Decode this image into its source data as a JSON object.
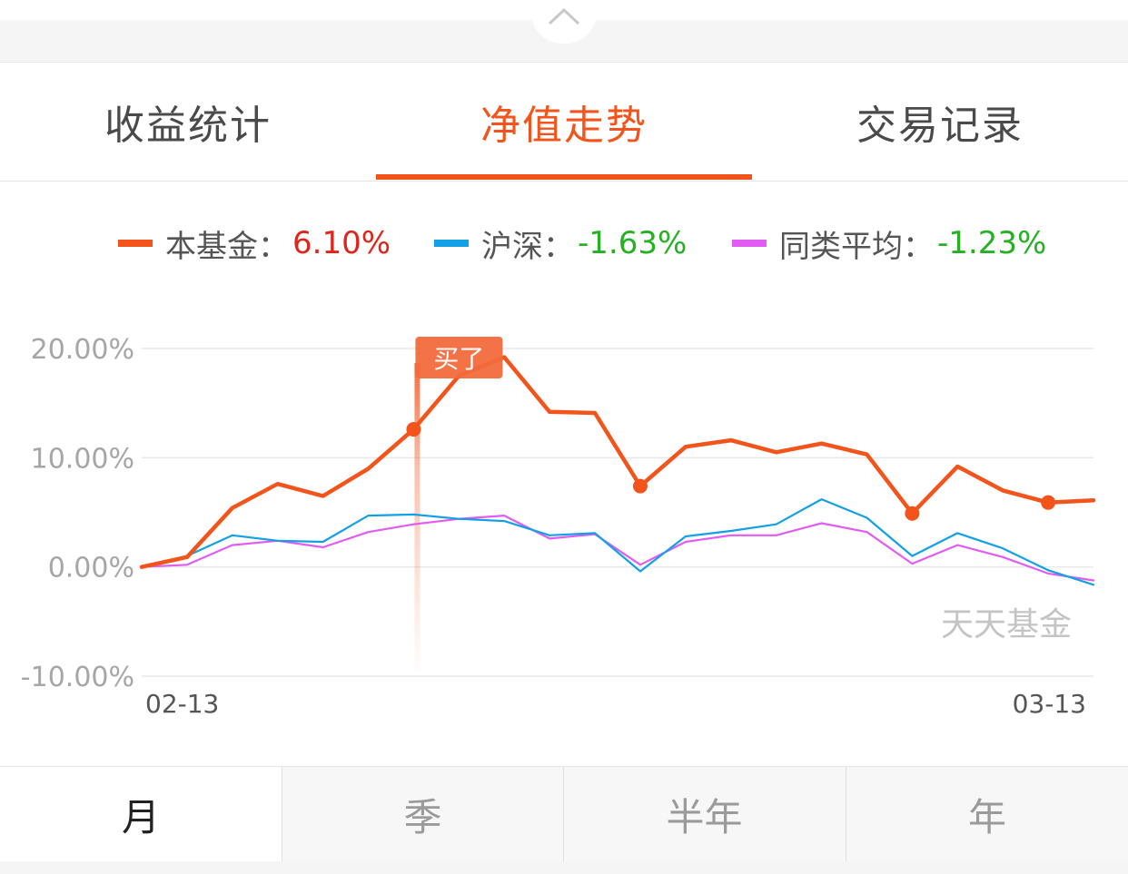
{
  "tabs": [
    {
      "label": "收益统计",
      "active": false
    },
    {
      "label": "净值走势",
      "active": true
    },
    {
      "label": "交易记录",
      "active": false
    }
  ],
  "legend": [
    {
      "name": "本基金",
      "sep": "：",
      "value": "6.10%",
      "swatch_color": "#f2541b",
      "value_color": "#e0241b"
    },
    {
      "name": "沪深",
      "sep": "：",
      "value": "-1.63%",
      "swatch_color": "#12a0e6",
      "value_color": "#26b024"
    },
    {
      "name": "同类平均",
      "sep": "：",
      "value": "-1.23%",
      "swatch_color": "#e05cf2",
      "value_color": "#26b024"
    }
  ],
  "chart_data": {
    "type": "line",
    "x_tick_labels": [
      "02-13",
      "03-13"
    ],
    "y_tick_labels": [
      "20.00%",
      "10.00%",
      "0.00%",
      "-10.00%"
    ],
    "y_ticks": [
      20,
      10,
      0,
      -10
    ],
    "ylim": [
      -10,
      20
    ],
    "grid": true,
    "watermark": "天天基金",
    "buy_marker": {
      "label": "买了",
      "index": 6
    },
    "series": [
      {
        "name": "本基金",
        "color": "#f2541b",
        "values": [
          0,
          0.9,
          5.4,
          7.6,
          6.5,
          9.0,
          12.6,
          17.5,
          19.2,
          14.2,
          14.1,
          7.4,
          11.0,
          11.6,
          10.5,
          11.3,
          10.3,
          4.9,
          9.2,
          7.0,
          5.9,
          6.1
        ],
        "markers": [
          6,
          11,
          17,
          20
        ]
      },
      {
        "name": "沪深",
        "color": "#12a0e6",
        "values": [
          0,
          1.0,
          2.9,
          2.4,
          2.3,
          4.7,
          4.8,
          4.4,
          4.2,
          2.9,
          3.1,
          -0.4,
          2.8,
          3.3,
          3.9,
          6.2,
          4.5,
          1.0,
          3.1,
          1.7,
          -0.3,
          -1.63
        ]
      },
      {
        "name": "同类平均",
        "color": "#e05cf2",
        "values": [
          0,
          0.2,
          2.0,
          2.4,
          1.8,
          3.2,
          3.9,
          4.4,
          4.7,
          2.6,
          3.0,
          0.2,
          2.3,
          2.9,
          2.9,
          4.0,
          3.2,
          0.3,
          2.0,
          0.9,
          -0.6,
          -1.23
        ]
      }
    ]
  },
  "periods": [
    {
      "label": "月",
      "active": true
    },
    {
      "label": "季",
      "active": false
    },
    {
      "label": "半年",
      "active": false
    },
    {
      "label": "年",
      "active": false
    }
  ]
}
